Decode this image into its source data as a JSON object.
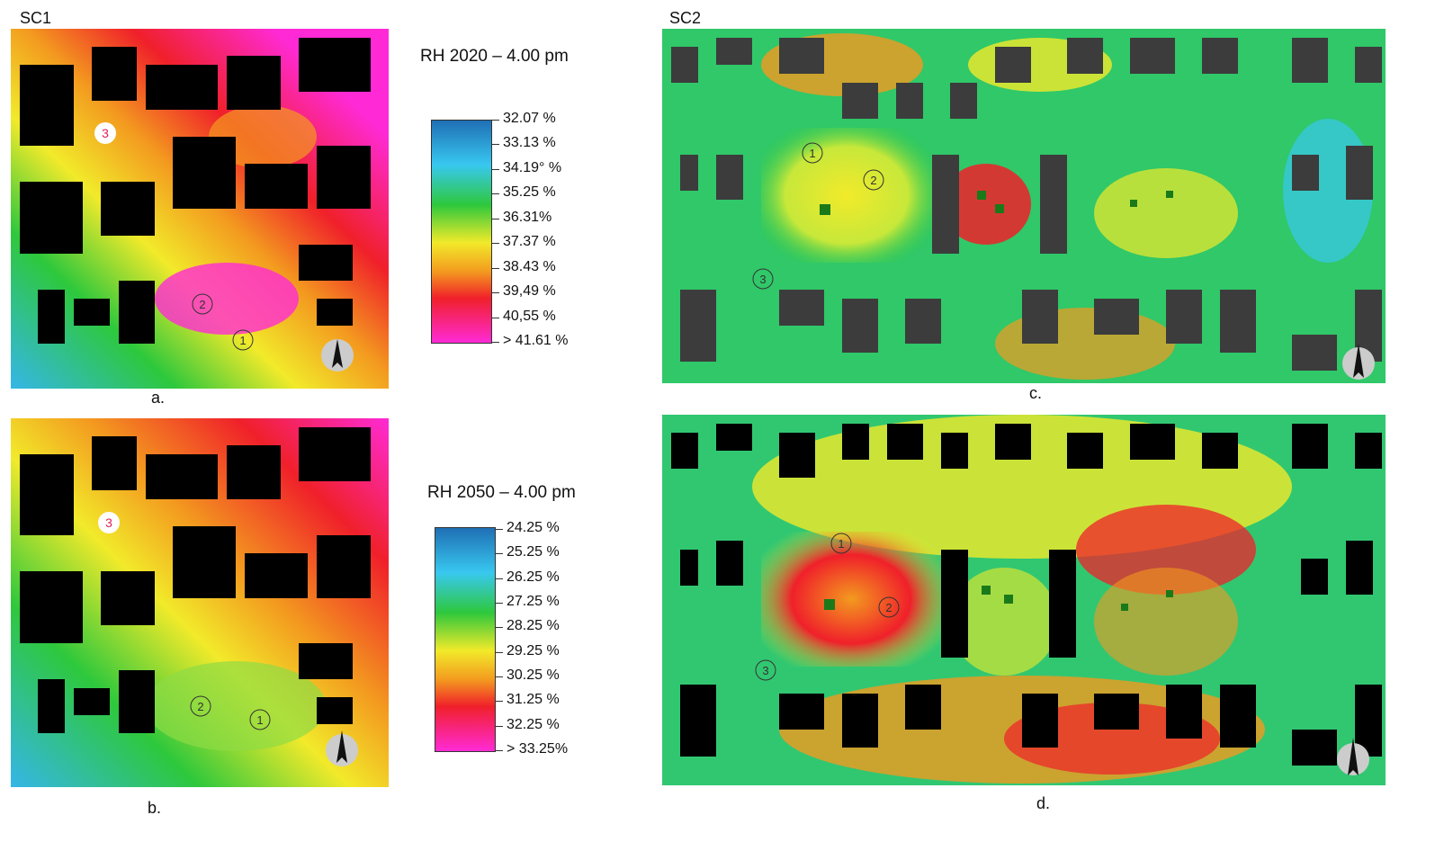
{
  "scenarios": {
    "sc1": "SC1",
    "sc2": "SC2"
  },
  "panels": {
    "a": {
      "caption": "a.",
      "markers": [
        "1",
        "2",
        "3"
      ]
    },
    "b": {
      "caption": "b.",
      "markers": [
        "1",
        "2",
        "3"
      ]
    },
    "c": {
      "caption": "c.",
      "markers": [
        "1",
        "2",
        "3"
      ]
    },
    "d": {
      "caption": "d.",
      "markers": [
        "1",
        "2",
        "3"
      ]
    }
  },
  "legend_2020": {
    "title": "RH 2020 – 4.00 pm",
    "ticks": [
      "32.07 %",
      "33.13 %",
      "34.19° %",
      "35.25 %",
      "36.31%",
      "37.37 %",
      "38.43 %",
      "39,49 %",
      "40,55 %",
      "> 41.61 %"
    ]
  },
  "legend_2050": {
    "title": "RH 2050 – 4.00 pm",
    "ticks": [
      "24.25 %",
      "25.25 %",
      "26.25 %",
      "27.25 %",
      "28.25 %",
      "29.25 %",
      "30.25 %",
      "31.25 %",
      "32.25 %",
      "> 33.25%"
    ]
  },
  "colors": {
    "blue": "#1f6fb4",
    "cyan": "#38c8f0",
    "green": "#2ec83c",
    "yellow": "#f2ea2a",
    "orange": "#f39a1f",
    "red": "#f0202a",
    "magenta": "#ff2ad6",
    "building": "#000000",
    "building_grey": "#3c3c3c"
  },
  "north_label": "N"
}
